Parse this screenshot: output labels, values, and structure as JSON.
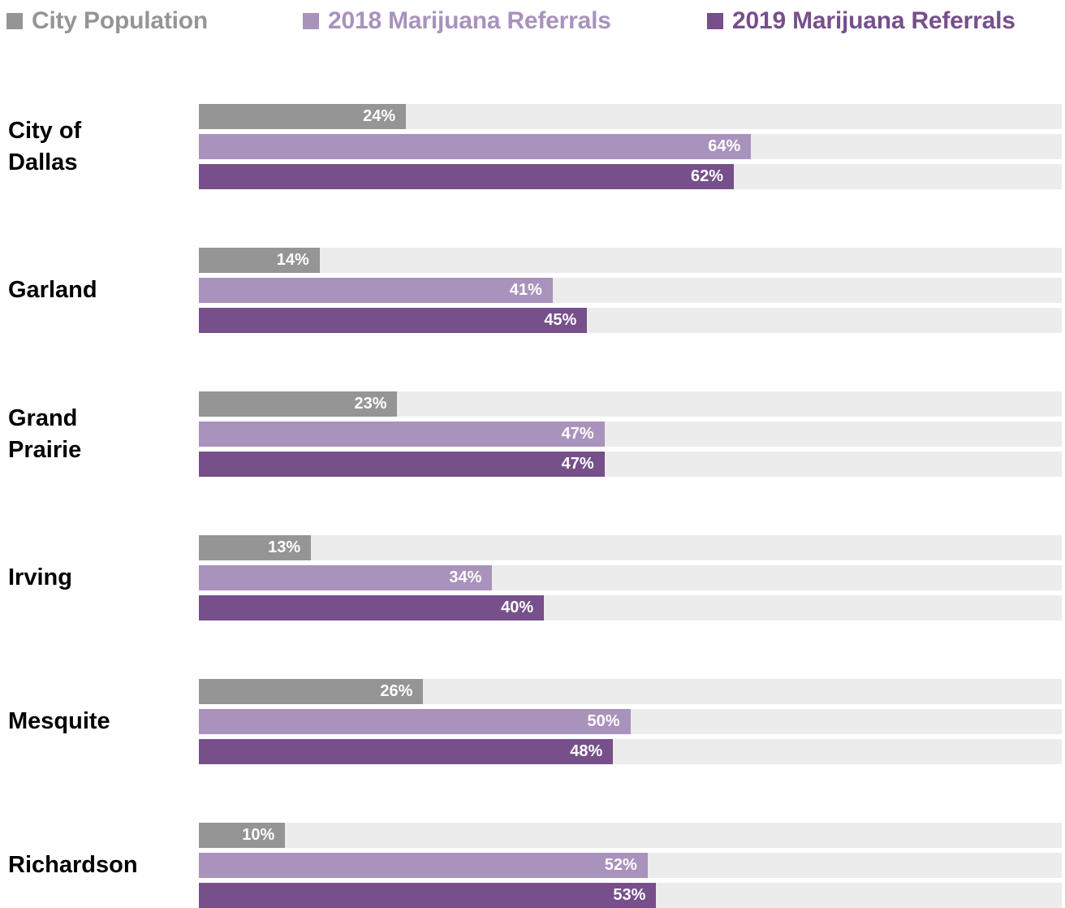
{
  "chart_data": {
    "type": "bar",
    "orientation": "horizontal",
    "categories": [
      "City of\nDallas",
      "Garland",
      "Grand\nPrairie",
      "Irving",
      "Mesquite",
      "Richardson"
    ],
    "series": [
      {
        "name": "City Population",
        "color": "#959595",
        "values": [
          24,
          14,
          23,
          13,
          26,
          10
        ],
        "labels": [
          "24%",
          "14%",
          "23%",
          "13%",
          "26%",
          "10%"
        ]
      },
      {
        "name": "2018 Marijuana Referrals",
        "color": "#a992bc",
        "values": [
          64,
          41,
          47,
          34,
          50,
          52
        ],
        "labels": [
          "64%",
          "41%",
          "47%",
          "34%",
          "50%",
          "52%"
        ]
      },
      {
        "name": "2019 Marijuana Referrals",
        "color": "#764f8b",
        "values": [
          62,
          45,
          47,
          40,
          48,
          53
        ],
        "labels": [
          "62%",
          "45%",
          "47%",
          "40%",
          "48%",
          "53%"
        ]
      }
    ],
    "xlim": [
      0,
      100
    ],
    "grid": false,
    "legend_position": "top"
  }
}
